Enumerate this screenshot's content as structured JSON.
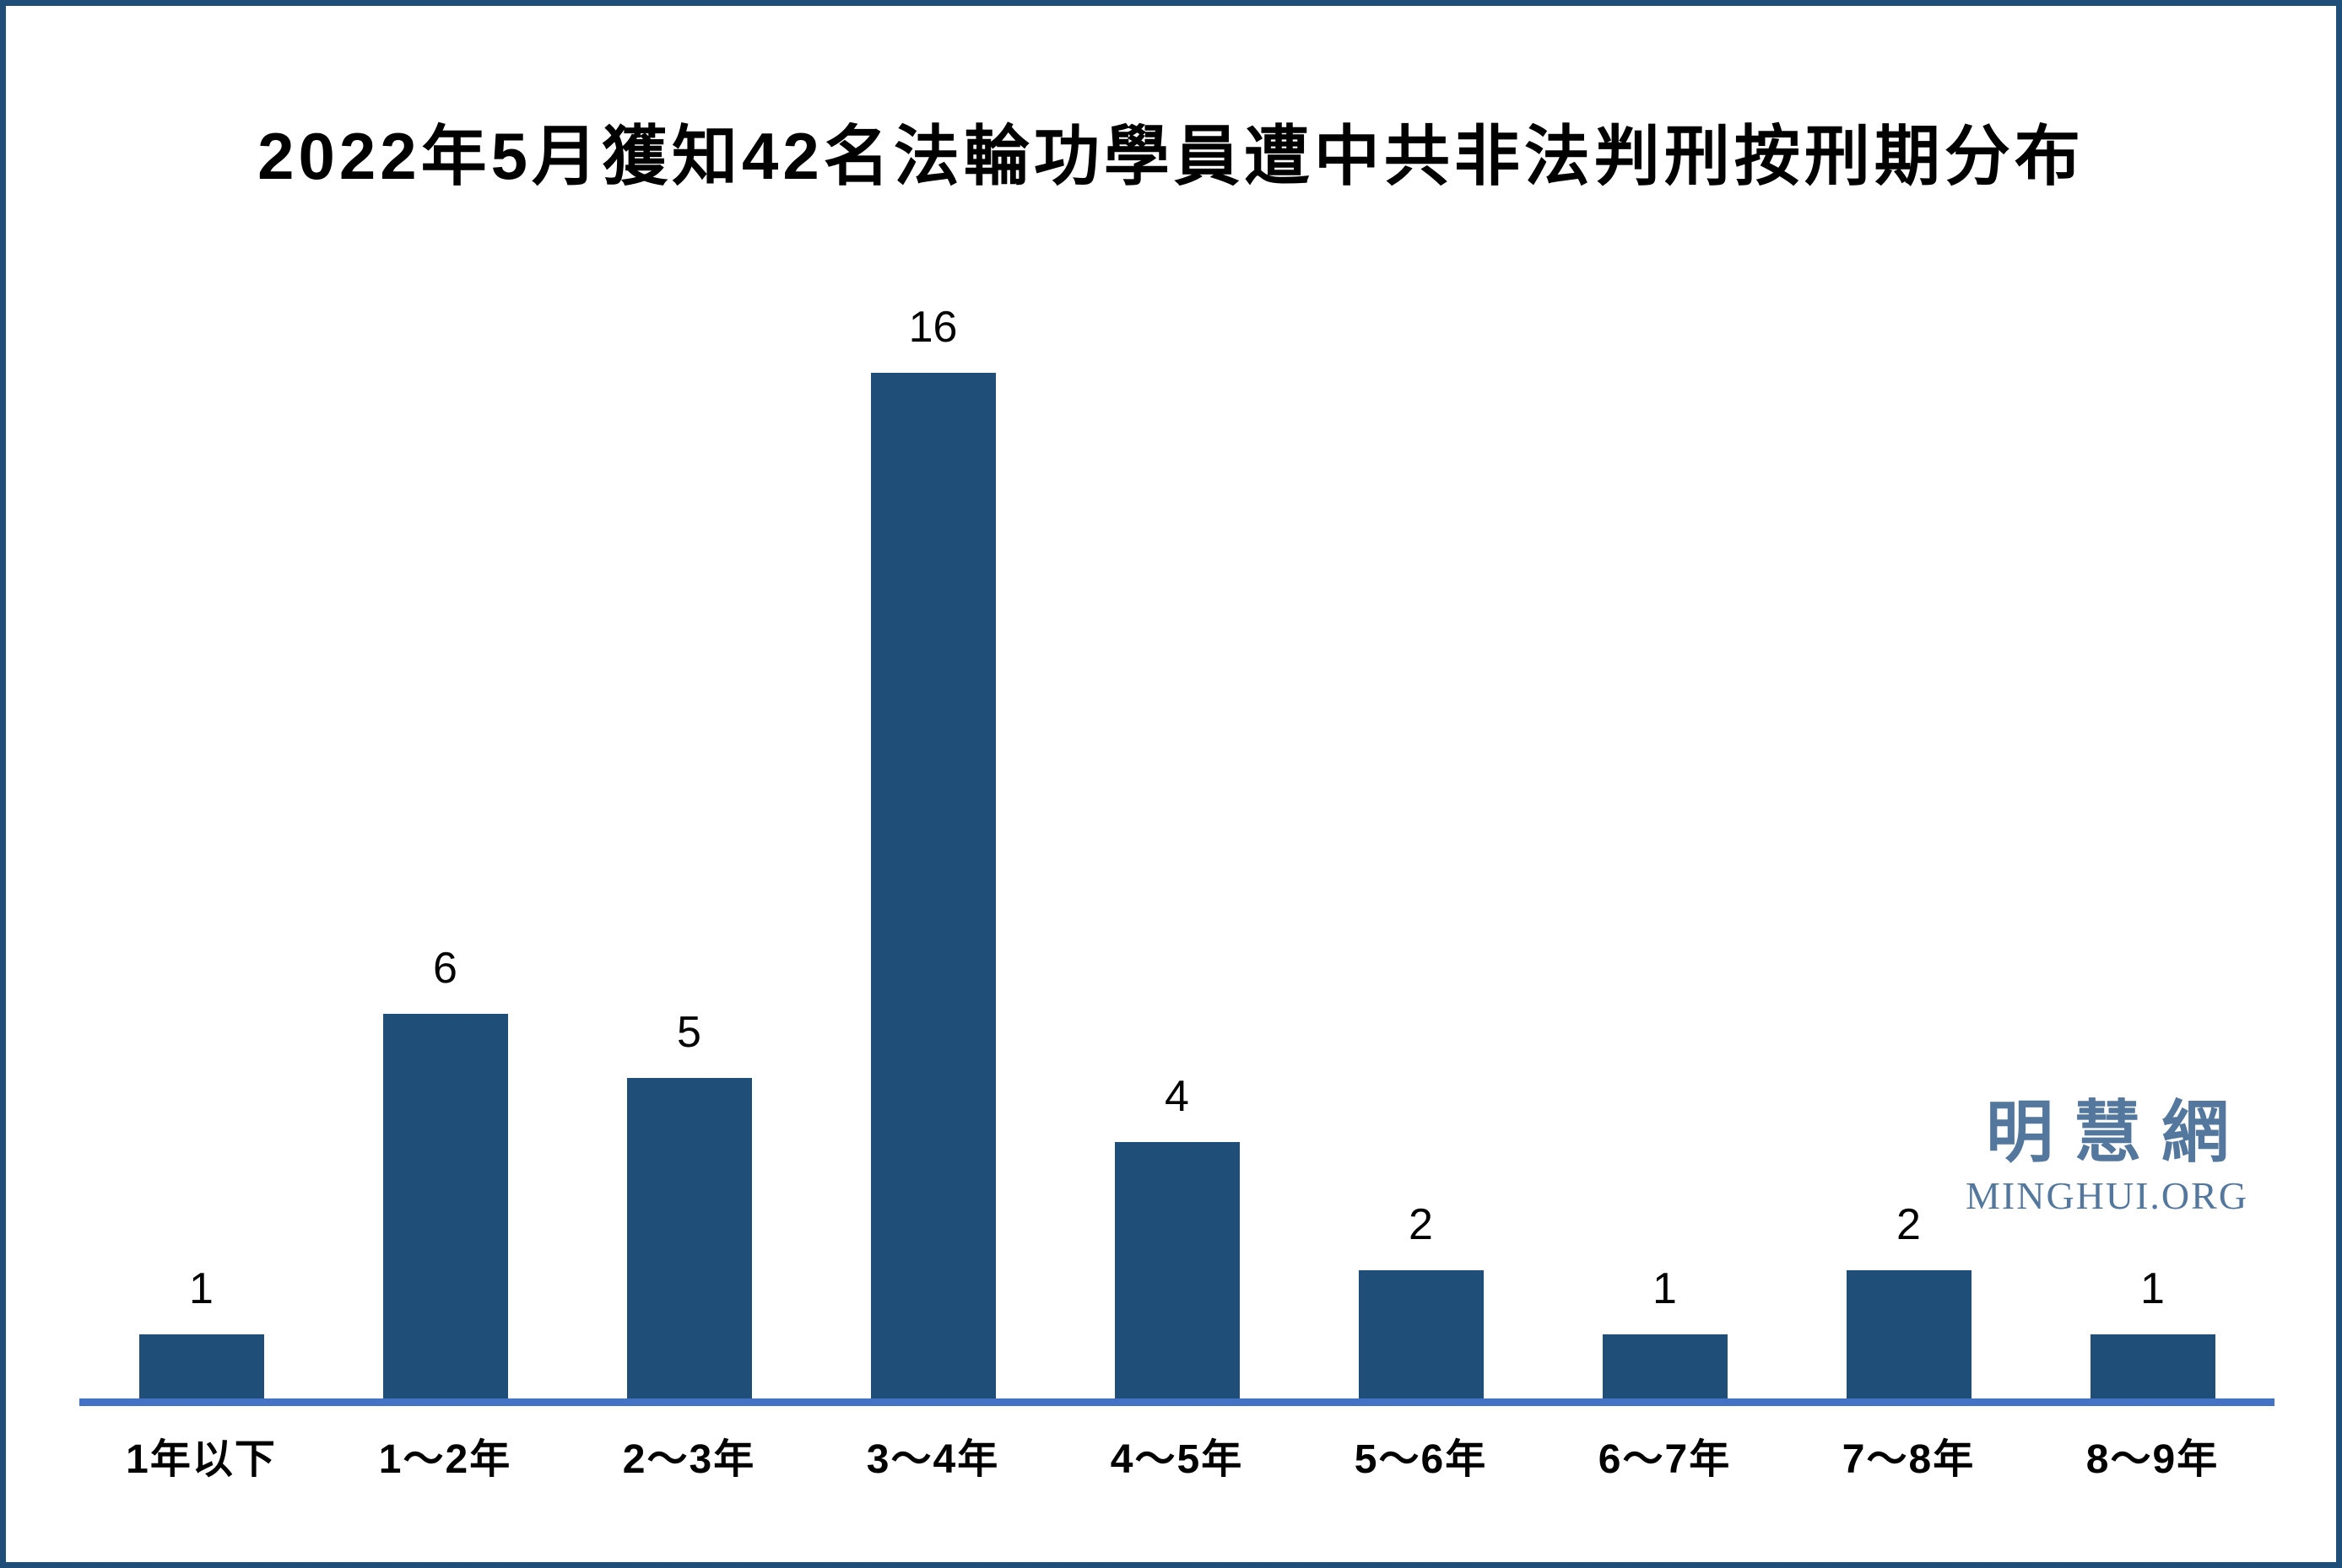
{
  "chart_data": {
    "type": "bar",
    "title": "2022年5月獲知42名法輪功學員遭中共非法判刑按刑期分布",
    "categories": [
      "1年以下",
      "1～2年",
      "2～3年",
      "3～4年",
      "4～5年",
      "5～6年",
      "6～7年",
      "7～8年",
      "8～9年"
    ],
    "values": [
      1,
      6,
      5,
      16,
      4,
      2,
      1,
      2,
      1
    ],
    "xlabel": "",
    "ylabel": "",
    "ylim": [
      0,
      16
    ],
    "grid": "off",
    "legend": "none",
    "data_labels": "above-bars",
    "bar_color": "#1F4E79",
    "axis_color": "#4472C4",
    "value_label_color": "#000000"
  },
  "watermark": {
    "chinese": "明慧網",
    "english": "MINGHUI.ORG",
    "color": "#54779E"
  },
  "frame": {
    "border_color": "#1F4E79",
    "background_color": "#FFFFFF"
  }
}
